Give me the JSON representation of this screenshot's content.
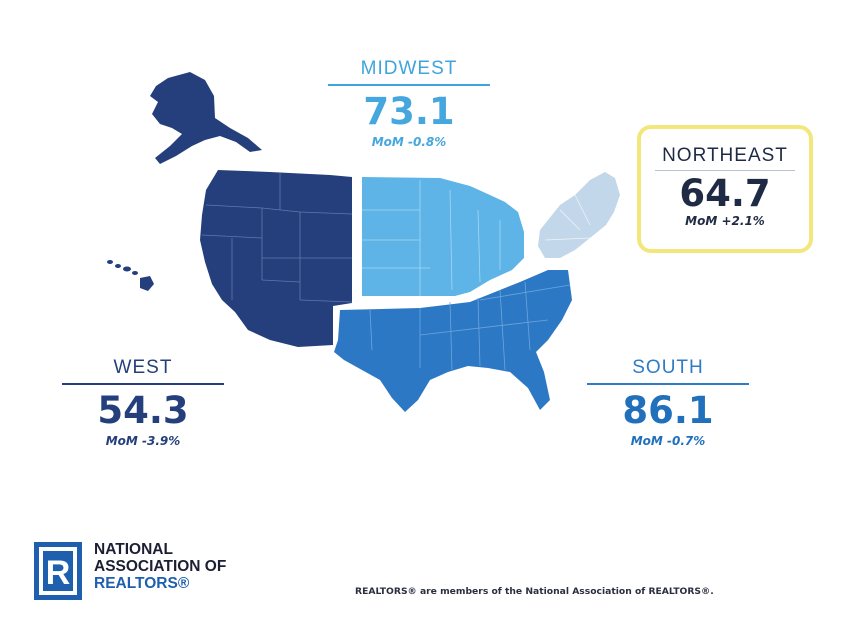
{
  "regions": {
    "midwest": {
      "name": "MIDWEST",
      "value": "73.1",
      "mom": "MoM -0.8%",
      "color": "#5eb4e6"
    },
    "northeast": {
      "name": "NORTHEAST",
      "value": "64.7",
      "mom": "MoM +2.1%",
      "color": "#c3d7ea",
      "highlight_color": "#f3e67a"
    },
    "west": {
      "name": "WEST",
      "value": "54.3",
      "mom": "MoM -3.9%",
      "color": "#243f7c"
    },
    "south": {
      "name": "SOUTH",
      "value": "86.1",
      "mom": "MoM -0.7%",
      "color": "#2d78c4"
    }
  },
  "logo": {
    "line1": "NATIONAL",
    "line2": "ASSOCIATION OF",
    "line3": "REALTORS®",
    "mark_letter": "R",
    "mark_color": "#1e5fae"
  },
  "footer": {
    "note": "REALTORS® are members of the National Association of REALTORS®."
  }
}
